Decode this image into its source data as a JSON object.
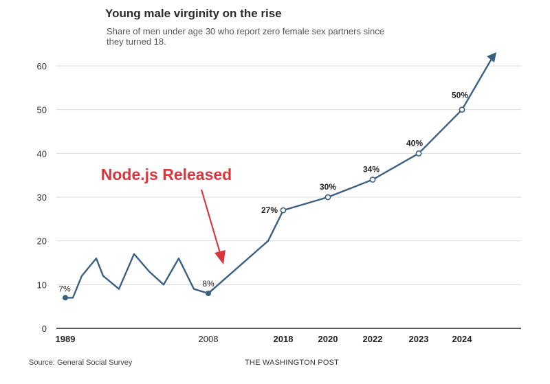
{
  "chart_data": {
    "type": "line",
    "title": "Young male virginity on the rise",
    "subtitle": "Share of men under age 30 who report zero female sex partners since they turned 18.",
    "ylim": [
      0,
      60
    ],
    "y_ticks": [
      0,
      10,
      20,
      30,
      40,
      50,
      60
    ],
    "x_tick_labels": [
      {
        "label": "1989",
        "bold": true
      },
      {
        "label": "2008",
        "bold": false
      },
      {
        "label": "2018",
        "bold": true
      },
      {
        "label": "2020",
        "bold": true
      },
      {
        "label": "2022",
        "bold": true
      },
      {
        "label": "2023",
        "bold": true
      },
      {
        "label": "2024",
        "bold": true
      }
    ],
    "series": [
      {
        "color": "#3b5f80",
        "points": [
          {
            "x": "1989",
            "y": 7,
            "label": "7%"
          },
          {
            "x": "",
            "y": 7
          },
          {
            "x": "",
            "y": 12
          },
          {
            "x": "",
            "y": 16
          },
          {
            "x": "",
            "y": 12
          },
          {
            "x": "",
            "y": 9
          },
          {
            "x": "",
            "y": 17
          },
          {
            "x": "",
            "y": 13
          },
          {
            "x": "",
            "y": 10
          },
          {
            "x": "",
            "y": 16
          },
          {
            "x": "",
            "y": 9
          },
          {
            "x": "2008",
            "y": 8,
            "label": "8%"
          },
          {
            "x": "",
            "y": 20
          },
          {
            "x": "2018",
            "y": 27,
            "label": "27%"
          },
          {
            "x": "2020",
            "y": 30,
            "label": "30%"
          },
          {
            "x": "2022",
            "y": 34,
            "label": "34%"
          },
          {
            "x": "2023",
            "y": 40,
            "label": "40%"
          },
          {
            "x": "2024",
            "y": 50,
            "label": "50%"
          }
        ],
        "arrow_end": true
      }
    ],
    "annotation": {
      "text": "Node.js Released",
      "color": "#d9363e",
      "points_to": "2008"
    },
    "grid": true,
    "legend": "none"
  },
  "footer": {
    "source": "Source: General Social Survey",
    "credit": "THE WASHINGTON POST"
  }
}
